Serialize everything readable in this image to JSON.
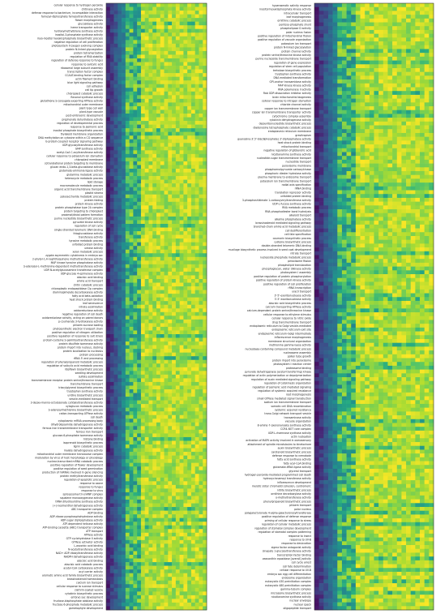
{
  "chart_data": [
    {
      "type": "heatmap",
      "colormap": "viridis (dark blue = low, yellow = high)",
      "legend": "none",
      "grid": false,
      "title": "",
      "xlabel": "",
      "ylabel": "",
      "row_labels": [
        "cellular response to hydrogen peroxide",
        "chitinase activity",
        "defense response to bacterium, incompatible interaction",
        "farnesyl-diphosphate farnesyltransferase activity",
        "flower morphogenesis",
        "glucosidase activity",
        "heme transporter activity",
        "hydroxymethylbilane synthase activity",
        "inositol-3-phosphate synthase activity",
        "myo-inositol hexakisphosphate biosynthetic process",
        "negative regulation of cell proliferation",
        "photosystem II oxygen evolving complex",
        "protein N-linked glycosylation",
        "protein tetramerization",
        "regulation of RNA stability",
        "regulation of defense response to fungus",
        "response to salicylic acid",
        "ribosomal large subunit assembly",
        "transcription factor complex",
        "CCAAT-binding factor complex",
        "actin filament binding",
        "blue light signaling pathway",
        "cell adhesion",
        "cell tip growth",
        "chloroplast catabolic process",
        "flavonol synthase activity",
        "glutathione S-conjugate-exporting ATPase activity",
        "mitochondrial outer membrane",
        "plant-type cell wall",
        "plant-type vacuole",
        "post-embryonic development",
        "prephenate dehydratase activity",
        "regulation of developmental process",
        "response to jasmonic acid",
        "inositol phosphate biosynthetic process",
        "thylakoid membrane organization",
        "DNA methylation on cytosine within a CG sequence",
        "G-protein coupled receptor signaling pathway",
        "UDP-glycosyltransferase activity",
        "GMP synthase activity",
        "acetyl-CoA C-acyltransferase activity",
        "cellular response to potassium ion starvation",
        "chloroplast membrane",
        "cotranslational protein targeting to membrane",
        "glucan endo-1,3-beta-glucosidase activity",
        "glutamate-ammonia ligase activity",
        "glutamine metabolic process",
        "heterocycle metabolic process",
        "lipid storage",
        "macromolecule metabolic process",
        "organic acid transmembrane transport",
        "plastid stroma",
        "polysaccharide metabolic process",
        "protein folding",
        "protein kinase activity",
        "protein phosphatase type 2A complex",
        "protein targeting to chloroplast",
        "proximal/distal pattern formation",
        "purine nucleotide biosynthetic process",
        "pyruvate kinase activity",
        "regulation of cell cycle",
        "single-stranded telomeric DNA binding",
        "thioglucosidase activity",
        "transferase activity",
        "tyrosine metabolic process",
        "unfolded protein binding",
        "urease activity",
        "xylan metabolic process",
        "zygote asymmetric cytokinesis in embryo sac",
        "2-phytyl-1,4-naphthoquinone methyltransferase activity",
        "MAP kinase tyrosine phosphatase activity",
        "S-adenosyl-L-methionine-dependent methyltransferase activity",
        "UDP-N-acetylglucosamine transferase complex",
        "UDP-glucose 4-epimerase activity",
        "abscisic acid binding",
        "amino acid transport",
        "chitin catabolic process",
        "chloroplastic endopeptidase Clp complex",
        "diaminopimelate decarboxylase activity",
        "fatty acid beta-oxidation",
        "heat shock protein binding",
        "leaf senescence",
        "nitrate assimilation",
        "oxidoreductase activity",
        "negative regulation of cell death",
        "oxidoreductase activity, acting on paired donors",
        "p-coumarate 3-hydroxylase activity",
        "phloem sucrose loading",
        "photosynthetic electron transport chain",
        "positive regulation of nitrogen utilization",
        "positive regulation of response to salt stress",
        "protein-cysteine S-palmitoyltransferase activity",
        "protein disulfide isomerase activity",
        "protein import into nucleus, docking",
        "protein localization to nucleolus",
        "protein processing",
        "rRNA 5'-end processing",
        "regulation of phenylpropanoid metabolic process",
        "regulation of salicylic acid metabolic process",
        "riboflavin biosynthetic process",
        "seedling development",
        "sulfate assimilation",
        "transmembrane receptor protein serine/threonine kinase",
        "transmembrane transport",
        "triacylglycerol biosynthetic process",
        "tryptophan synthase activity",
        "uridine biosynthetic process",
        "vesicle-mediated transport",
        "3-deoxy-manno-octulosonate cytidylyltransferase activity",
        "xyloglucan metabolic process",
        "S-adenosylmethionine biosynthetic process",
        "cation-transporting ATPase activity",
        "cell death",
        "cytoplasmic mRNA processing body",
        "dihydrolipoamide dehydrogenase activity",
        "ferrous iron transmembrane transporter activity",
        "ferrous iron transport",
        "glucose-6-phosphate isomerase activity",
        "histone binding",
        "isoprenoid biosynthetic process",
        "lignin catabolic process",
        "malate dehydrogenase activity",
        "mitochondrial outer membrane translocase complex",
        "modulation by virus of host morphology or physiology",
        "nuclear-transcribed mRNA catabolic process",
        "positive regulation of flower development",
        "positive regulation of seed germination",
        "production of miRNAs involved in gene silencing",
        "protein methyltransferase activity",
        "regulation of apoptotic process",
        "response to ozone",
        "response to fungus",
        "response to virus",
        "spliceosomal tri-snRNP complex",
        "squalene monooxygenase activity",
        "tRNA dihydrouridine synthase activity",
        "(+)-neomenthol dehydrogenase activity",
        "ABC transporter complex",
        "ADP binding",
        "ADP-ribose pyrophosphohydrolase activity",
        "ADP-sugar diphosphatase activity",
        "ATP-dependent helicase activity",
        "ATP-binding cassette (ABC) transporter complex",
        "ATP transport",
        "ATPase activity",
        "GTP cyclohydrolase II activity",
        "GTPase activator activity",
        "L-ascorbic acid binding",
        "N-acetyltransferase activity",
        "NAD+ ADP-ribosyltransferase activity",
        "NADPH dehydrogenase activity",
        "abscisic acid binding",
        "abscisic acid catabolic process",
        "acetyl-CoA carboxylase activity",
        "acyl carrier activity",
        "aromatic amino acid family biosynthetic process",
        "brassinosteroid homeostasis",
        "calcium ion transport",
        "cellular response to sucrose stimulus",
        "clathrin-coated vesicle",
        "cytokinin biosynthetic process",
        "embryo sac development",
        "fructose-bisphosphate aldolase activity",
        "fructose 6-phosphate metabolic process",
        "gametophyte development"
      ]
    },
    {
      "type": "heatmap",
      "colormap": "viridis (dark blue = low, yellow = high)",
      "legend": "none",
      "grid": false,
      "title": "",
      "xlabel": "",
      "ylabel": "",
      "row_labels": [
        "hyperosmotic salinity response",
        "inositol hexakisphosphate kinase activity",
        "intracellular transport",
        "leaf morphogenesis",
        "ornithine catabolic process",
        "pentose-phosphate shunt",
        "phospholipase D activity",
        "polar nucleus fusion",
        "positive regulation of mitochondrial fission",
        "positive regulation of vacuole organization",
        "potassium ion transport",
        "protein N-linked glycosylation",
        "protein channel activity",
        "protein serine/threonine kinase activity",
        "purine nucleoside transmembrane transport",
        "regulation of gene expression",
        "regulation of stem cell population",
        "trehalose biosynthetic process",
        "tryptophan synthase activity",
        "DNA mediated transformation",
        "GPI-anchor transamidase activity",
        "MAP kinase kinase activity",
        "RNA polymerase II activity",
        "Rab GDP-dissociation inhibitor activity",
        "brain mitochondrial biogenesis",
        "cellular response to nitrogen starvation",
        "chloride channel activity",
        "copper ion transmembrane transport",
        "copper ion transmembrane transporter activity",
        "cytochrome complex assembly",
        "cytokinin dehydrogenase activity",
        "deoxyribonucleotide biosynthetic process",
        "diadenosine tetraphosphate catabolic process",
        "endoplasmic reticulum membrane",
        "gravitropism",
        "guanosine-3',5'-bis(diphosphate) 3'-diphosphatase activity",
        "heat shock protein binding",
        "mitochondrial transport",
        "negative regulation of gibberellic acid",
        "nicotianamine synthase activity",
        "nucleotide-sugar transmembrane transport",
        "nucleotide transport",
        "peroxisome membrane",
        "phosphoenolpyruvate carboxykinase",
        "phosphoric diester hydrolase activity",
        "plasma membrane to endosome transport",
        "potassium ion transmembrane transport",
        "radial axis specification",
        "rRNA binding",
        "translation repressor activity",
        "unfolded protein binding",
        "3-phosphoshikimate 1-carboxyvinyltransferase activity",
        "UDP-L-fucose synthase activity",
        "RNA metabolic process",
        "RNA phosphodiester bond hydrolysis",
        "alkaloid transport",
        "alkaline phosphatase activity",
        "brassinosteroid mediated signaling pathway",
        "branched-chain amino acid metabolic process",
        "cell dedifferentiation",
        "cell fate specification",
        "coumarin biosynthetic process",
        "cysteine biosynthetic process",
        "double-stranded telomeric DNA binding",
        "mucilage biosynthetic process involved in seed coat development",
        "nitrate transport",
        "nucleoside phosphate metabolic process",
        "peroxisome fission",
        "phospholipid translocation",
        "phosphoglucan, water dikinase activity",
        "photosystem I assembly",
        "positive regulation of protein phosphorylation",
        "positive regulation of protein kinase activity",
        "positive regulation of cell proliferation",
        "rRNA transcription",
        "uracil transport",
        "3'-5'-exoribonuclease activity",
        "3'-5' exoribonuclease activity",
        "abscisic acid biosynthetic process",
        "calcium transporting ATPase activity",
        "calcium-dependent protein serine/threonine kinase",
        "cellular response to ethylene stimulus",
        "cellular response to nitric oxide",
        "drug transmembrane transport",
        "endoplasmic reticulum to Golgi vesicle-mediated",
        "endoplasmic reticulum exit site",
        "endoplasmic reticulum-Golgi intermediate",
        "inflorescence morphogenesis",
        "membrane structural organization",
        "methionine gamma-lyase activity",
        "nucleobase-containing compound metabolic process",
        "nucleosome assembly",
        "pollen tube growth",
        "protein import into peroxisome",
        "photosystem I reaction center",
        "proteasome binding",
        "pyruvate dehydrogenase (acetyl-transferring) kinase",
        "regulation of actin polymerization or depolymerization",
        "regulation of auxin mediated signaling pathway",
        "regulation of cytokinesis organization",
        "regulation of jasmonic acid mediated signaling",
        "regulation of systemic acquired resistance",
        "root morphogenesis",
        "small GTPase mediated signal transduction",
        "sodium ion transmembrane transport",
        "somatic cell DNA recombination",
        "systemic acquired resistance",
        "trans-Golgi network transport vesicle",
        "transaminase activity",
        "vacuole organization",
        "8-amino-7-oxononanoate synthase activity",
        "CCR4-NOT core complex",
        "UDP-L-rhamnose synthase activity",
        "actin nucleation",
        "activation of MAPK activity involved in osmosensory",
        "attachment of spindle microtubules to kinetochore",
        "auxin biosynthetic process",
        "carotenoid biosynthetic process",
        "defense response to nematode",
        "fatty acid synthase activity",
        "fatty acyl-CoA binding",
        "glutamate-tRNA ligase activity",
        "glycerol transport",
        "hydrogen peroxide-mediated programmed cell death",
        "hydroxycinnamoyl transferase activity",
        "inflorescence development",
        "meiotic sister chromatid cohesion, centromeric",
        "nitrite biosynthetic process",
        "ornithine decarboxylase activity",
        "o-methyltransferase activity",
        "phenylpropanoid biosynthetic process",
        "phloem transport",
        "polar nucleus",
        "polygalacturonate 4-alpha-galacturonosyltransferase",
        "positive regulation of defense response",
        "priming of cellular response to stress",
        "regulation of cellular metabolic process",
        "regulation of stomatal complex development",
        "regulation of stomatal complex patterning",
        "response to insect",
        "response to UV-B",
        "response to desiccation",
        "sigma factor antagonist activity",
        "sinapate 1-glucosyltransferase activity",
        "transcription factor binding",
        "zeaxanthin epoxidase [overall] activity",
        "cell cycle arrest",
        "cell fate determination",
        "cellular response to UV-B",
        "embryo sac egg cell differentiation",
        "endosome organization",
        "eukaryotic 43S preinitiation complex",
        "eukaryotic 48S preinitiation complex",
        "gamma-tubulin complex",
        "microsome biosynthetic process",
        "nicotianamine synthase activity",
        "nuclear envelope",
        "nuclear speck",
        "oligopeptide transport"
      ]
    }
  ]
}
